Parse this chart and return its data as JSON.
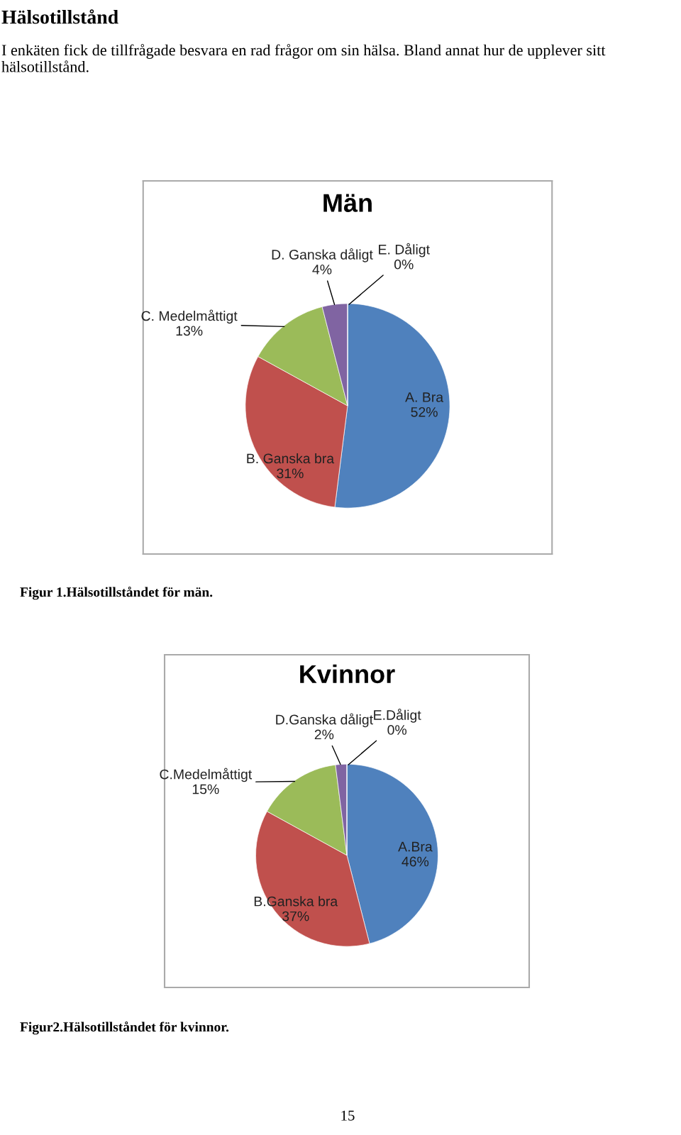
{
  "chart_data": [
    {
      "type": "pie",
      "title": "Män",
      "categories": [
        "A. Bra",
        "B. Ganska bra",
        "C. Medelmåttigt",
        "D. Ganska dåligt",
        "E. Dåligt"
      ],
      "values": [
        52,
        31,
        13,
        4,
        0
      ],
      "value_labels": [
        "52%",
        "31%",
        "13%",
        "4%",
        "0%"
      ],
      "colors": [
        "#4f81bd",
        "#c0504d",
        "#9bbb59",
        "#8064a2",
        "#4bacc6"
      ],
      "annotations": [
        "Hälsotillstånd",
        "I enkäten fick de tillfrågade besvara en rad frågor om sin hälsa. Bland annat hur de upplever sitt hälsotillstånd.",
        "Figur 1.Hälsotillståndet för män."
      ]
    },
    {
      "type": "pie",
      "title": "Kvinnor",
      "categories": [
        "A.Bra",
        "B.Ganska bra",
        "C.Medelmåttigt",
        "D.Ganska dåligt",
        "E.Dåligt"
      ],
      "values": [
        46,
        37,
        15,
        2,
        0
      ],
      "value_labels": [
        "46%",
        "37%",
        "15%",
        "2%",
        "0%"
      ],
      "colors": [
        "#4f81bd",
        "#c0504d",
        "#9bbb59",
        "#8064a2",
        "#4bacc6"
      ],
      "annotations": [
        "Figur2.Hälsotillståndet för kvinnor.",
        "15"
      ]
    }
  ]
}
